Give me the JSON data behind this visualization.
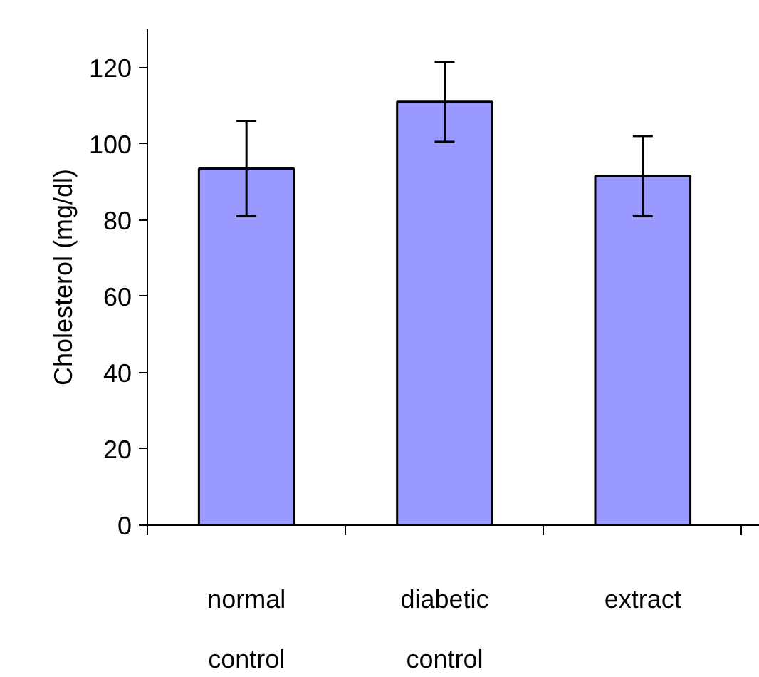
{
  "chart_data": {
    "type": "bar",
    "ylabel": "Cholesterol (mg/dl)",
    "categories": [
      "normal\ncontrol",
      "diabetic\ncontrol",
      "extract"
    ],
    "values": [
      93.5,
      111,
      91.5
    ],
    "errors": [
      12.5,
      10.5,
      10.5
    ],
    "color": "#9999ff",
    "ylim": [
      0,
      130
    ],
    "yticks": [
      0,
      20,
      40,
      60,
      80,
      100,
      120
    ],
    "grid": false
  }
}
